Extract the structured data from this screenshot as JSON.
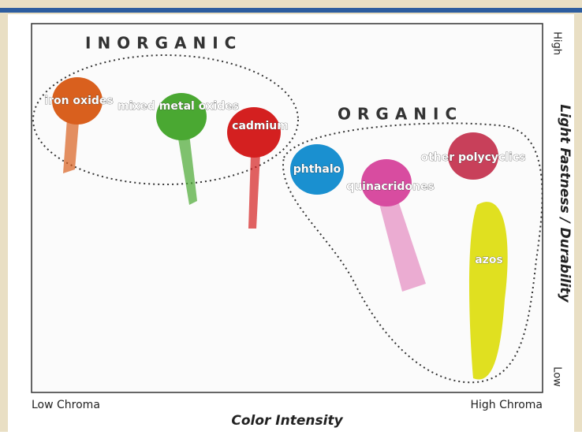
{
  "groups": {
    "inorganic": "INORGANIC",
    "organic": "ORGANIC"
  },
  "pigments": [
    "iron oxides",
    "mixed metal oxides",
    "cadmium",
    "phthalo",
    "quinacridones",
    "other polycyclics",
    "azos"
  ],
  "x_axis": {
    "title": "Color Intensity",
    "low": "Low Chroma",
    "high": "High Chroma"
  },
  "y_axis": {
    "title": "Light Fastness / Durability",
    "high": "High",
    "low": "Low"
  }
}
